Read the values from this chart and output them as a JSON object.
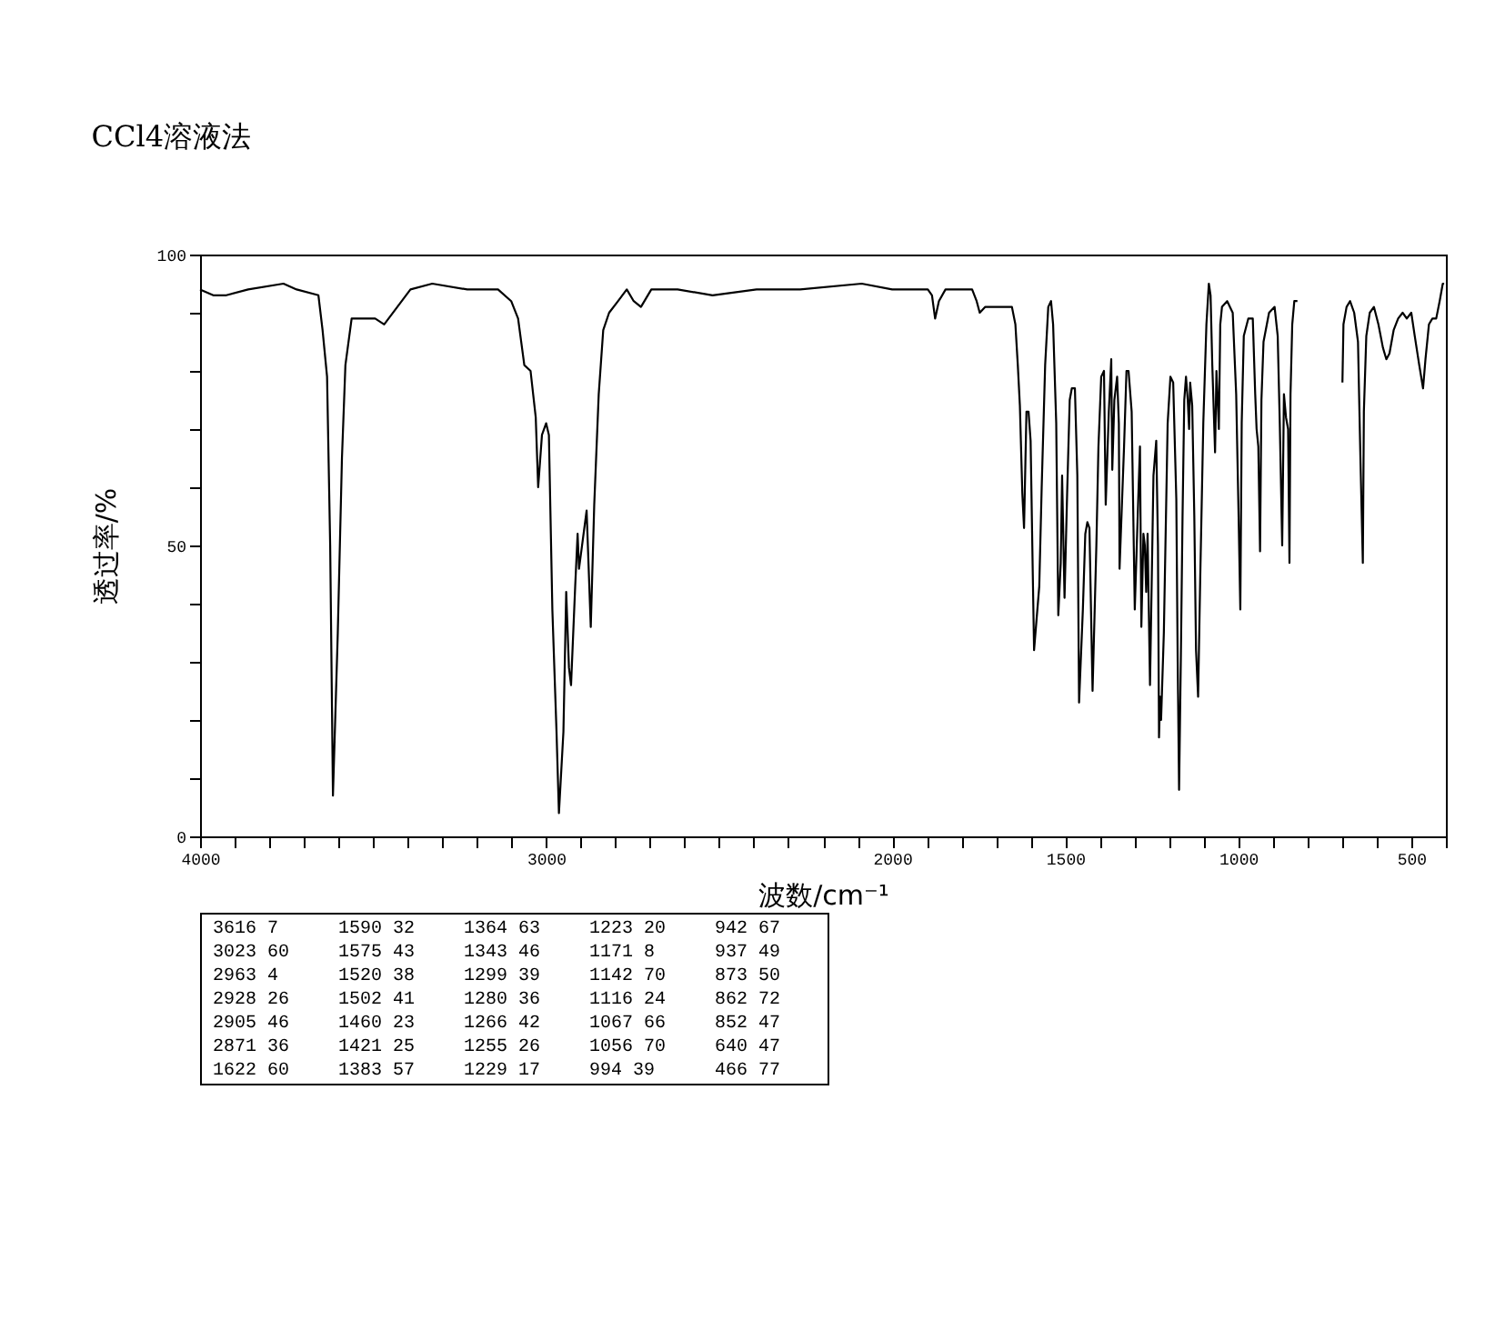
{
  "chart_data": [
    {
      "type": "line",
      "title": "CCl4溶液法",
      "xlabel": "波数/cm⁻¹",
      "ylabel": "透过率/%",
      "color": "#000000",
      "x": [
        4000,
        3962,
        3924,
        3861,
        3759,
        3721,
        3658,
        3646,
        3633,
        3624,
        3616,
        3602,
        3590,
        3580,
        3562,
        3532,
        3494,
        3468,
        3430,
        3392,
        3329,
        3228,
        3139,
        3101,
        3081,
        3063,
        3045,
        3030,
        3023,
        3012,
        3000,
        2992,
        2982,
        2970,
        2963,
        2950,
        2942,
        2934,
        2928,
        2916,
        2909,
        2905,
        2894,
        2883,
        2871,
        2861,
        2848,
        2835,
        2818,
        2792,
        2767,
        2747,
        2726,
        2696,
        2620,
        2519,
        2392,
        2266,
        2088,
        2000,
        1897,
        1885,
        1876,
        1865,
        1846,
        1801,
        1769,
        1756,
        1747,
        1731,
        1686,
        1654,
        1644,
        1637,
        1631,
        1624,
        1619,
        1612,
        1606,
        1600,
        1594,
        1590,
        1575,
        1568,
        1558,
        1549,
        1541,
        1535,
        1526,
        1520,
        1513,
        1509,
        1502,
        1494,
        1487,
        1481,
        1472,
        1465,
        1460,
        1449,
        1442,
        1436,
        1430,
        1421,
        1410,
        1404,
        1396,
        1388,
        1383,
        1374,
        1367,
        1364,
        1358,
        1350,
        1345,
        1343,
        1330,
        1323,
        1317,
        1308,
        1299,
        1289,
        1284,
        1280,
        1274,
        1270,
        1266,
        1262,
        1255,
        1245,
        1237,
        1232,
        1229,
        1226,
        1223,
        1215,
        1204,
        1196,
        1188,
        1179,
        1175,
        1171,
        1166,
        1161,
        1156,
        1151,
        1146,
        1142,
        1139,
        1133,
        1127,
        1122,
        1116,
        1110,
        1101,
        1092,
        1085,
        1080,
        1075,
        1067,
        1063,
        1056,
        1052,
        1047,
        1032,
        1016,
        1006,
        999,
        994,
        990,
        984,
        971,
        958,
        951,
        947,
        942,
        937,
        933,
        927,
        911,
        895,
        886,
        880,
        873,
        868,
        862,
        856,
        852,
        849,
        844,
        838,
        829,
        760,
        699,
        696,
        687,
        677,
        665,
        654,
        647,
        640,
        637,
        630,
        620,
        608,
        595,
        582,
        572,
        563,
        551,
        538,
        525,
        513,
        500,
        490,
        477,
        466,
        459,
        449,
        439,
        428,
        418,
        409,
        405
      ],
      "values": [
        94,
        93,
        93,
        94,
        95,
        94,
        93,
        87,
        79,
        50,
        7,
        35,
        65,
        81,
        89,
        89,
        89,
        88,
        91,
        94,
        95,
        94,
        94,
        92,
        89,
        81,
        80,
        72,
        60,
        69,
        71,
        69,
        39,
        18,
        4,
        18,
        42,
        29,
        26,
        43,
        52,
        46,
        51,
        56,
        36,
        57,
        76,
        87,
        90,
        92,
        94,
        92,
        91,
        94,
        94,
        93,
        94,
        94,
        95,
        94,
        94,
        93,
        89,
        92,
        94,
        94,
        94,
        92,
        90,
        91,
        91,
        91,
        88,
        81,
        74,
        59,
        53,
        73,
        73,
        68,
        46,
        32,
        43,
        60,
        81,
        91,
        92,
        88,
        71,
        38,
        47,
        62,
        41,
        60,
        75,
        77,
        77,
        62,
        23,
        39,
        52,
        54,
        53,
        25,
        50,
        67,
        79,
        80,
        57,
        73,
        82,
        63,
        75,
        79,
        71,
        46,
        67,
        80,
        80,
        73,
        39,
        58,
        67,
        36,
        52,
        50,
        42,
        52,
        26,
        62,
        68,
        50,
        17,
        24,
        20,
        35,
        71,
        79,
        78,
        58,
        30,
        8,
        30,
        55,
        75,
        79,
        75,
        70,
        78,
        74,
        55,
        32,
        24,
        44,
        71,
        88,
        95,
        93,
        81,
        66,
        80,
        70,
        88,
        91,
        92,
        90,
        76,
        55,
        39,
        71,
        86,
        89,
        89,
        76,
        70,
        67,
        49,
        75,
        85,
        90,
        91,
        86,
        71,
        50,
        76,
        72,
        70,
        47,
        76,
        88,
        92,
        92,
        null,
        78,
        88,
        91,
        92,
        90,
        85,
        65,
        47,
        73,
        86,
        90,
        91,
        88,
        84,
        82,
        83,
        87,
        89,
        90,
        89,
        90,
        86,
        81,
        77,
        82,
        88,
        89,
        89,
        92,
        95,
        95
      ],
      "xlim": [
        4000,
        400
      ],
      "xticks": [
        4000,
        {
          "value": 3900,
          "label": null
        },
        {
          "value": 3800,
          "label": null
        },
        {
          "value": 3700,
          "label": null
        },
        {
          "value": 3600,
          "label": null
        },
        {
          "value": 3500,
          "label": null
        },
        {
          "value": 3400,
          "label": null
        },
        {
          "value": 3300,
          "label": null
        },
        {
          "value": 3200,
          "label": null
        },
        {
          "value": 3100,
          "label": null
        },
        3000,
        {
          "value": 2900,
          "label": null
        },
        {
          "value": 2800,
          "label": null
        },
        {
          "value": 2700,
          "label": null
        },
        {
          "value": 2600,
          "label": null
        },
        {
          "value": 2500,
          "label": null
        },
        {
          "value": 2400,
          "label": null
        },
        {
          "value": 2300,
          "label": null
        },
        {
          "value": 2200,
          "label": null
        },
        {
          "value": 2100,
          "label": null
        },
        2000,
        {
          "value": 1900,
          "label": null
        },
        {
          "value": 1800,
          "label": null
        },
        {
          "value": 1700,
          "label": null
        },
        {
          "value": 1600,
          "label": null
        },
        1500,
        {
          "value": 1400,
          "label": null
        },
        {
          "value": 1300,
          "label": null
        },
        {
          "value": 1200,
          "label": null
        },
        {
          "value": 1100,
          "label": null
        },
        1000,
        {
          "value": 900,
          "label": null
        },
        {
          "value": 800,
          "label": null
        },
        {
          "value": 700,
          "label": null
        },
        {
          "value": 600,
          "label": null
        },
        500,
        {
          "value": 400,
          "label": null
        }
      ],
      "ylim": [
        0,
        100
      ],
      "yticks": [
        0,
        {
          "value": 10,
          "label": null
        },
        {
          "value": 20,
          "label": null
        },
        {
          "value": 30,
          "label": null
        },
        {
          "value": 40,
          "label": null
        },
        50,
        {
          "value": 60,
          "label": null
        },
        {
          "value": 70,
          "label": null
        },
        {
          "value": 80,
          "label": null
        },
        {
          "value": 90,
          "label": null
        },
        100
      ],
      "grid": false
    },
    {
      "type": "other",
      "annotations": [
        "3616 7",
        "3023 60",
        "2963 4",
        "2928 26",
        "2905 46",
        "2871 36",
        "1622 60",
        "1590 32",
        "1575 43",
        "1520 38",
        "1502 41",
        "1460 23",
        "1421 25",
        "1383 57",
        "1364 63",
        "1343 46",
        "1299 39",
        "1280 36",
        "1266 42",
        "1255 26",
        "1229 17",
        "1223 20",
        "1171 8",
        "1142 70",
        "1116 24",
        "1067 66",
        "1056 70",
        "994 39",
        "942 67",
        "937 49",
        "873 50",
        "862 72",
        "852 47",
        "640 47",
        "466 77"
      ]
    }
  ]
}
